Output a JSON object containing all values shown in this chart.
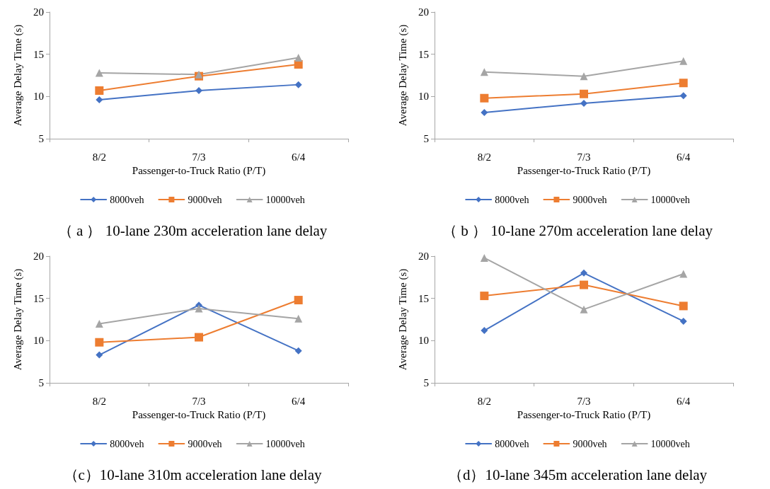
{
  "chart_data": [
    {
      "type": "line",
      "title": "（ a ） 10-lane 230m acceleration lane delay",
      "xlabel": "Passenger-to-Truck Ratio (P/T)",
      "ylabel": "Average Delay Time (s)",
      "categories": [
        "8/2",
        "7/3",
        "6/4"
      ],
      "ylim": [
        5,
        20
      ],
      "yticks": [
        5,
        10,
        15,
        20
      ],
      "grid": false,
      "legend": "bottom",
      "series": [
        {
          "name": "8000veh",
          "color": "#4472c4",
          "marker": "diamond",
          "values": [
            9.6,
            10.7,
            11.4
          ]
        },
        {
          "name": "9000veh",
          "color": "#ed7d31",
          "marker": "square",
          "values": [
            10.7,
            12.4,
            13.8
          ]
        },
        {
          "name": "10000veh",
          "color": "#a5a5a5",
          "marker": "triangle",
          "values": [
            12.8,
            12.6,
            14.6
          ]
        }
      ]
    },
    {
      "type": "line",
      "title": "（ b ） 10-lane 270m acceleration lane delay",
      "xlabel": "Passenger-to-Truck Ratio (P/T)",
      "ylabel": "Average Delay Time (s)",
      "categories": [
        "8/2",
        "7/3",
        "6/4"
      ],
      "ylim": [
        5,
        20
      ],
      "yticks": [
        5,
        10,
        15,
        20
      ],
      "grid": false,
      "legend": "bottom",
      "series": [
        {
          "name": "8000veh",
          "color": "#4472c4",
          "marker": "diamond",
          "values": [
            8.1,
            9.2,
            10.1
          ]
        },
        {
          "name": "9000veh",
          "color": "#ed7d31",
          "marker": "square",
          "values": [
            9.8,
            10.3,
            11.6
          ]
        },
        {
          "name": "10000veh",
          "color": "#a5a5a5",
          "marker": "triangle",
          "values": [
            12.9,
            12.4,
            14.2
          ]
        }
      ]
    },
    {
      "type": "line",
      "title": "（c）10-lane 310m acceleration lane delay",
      "xlabel": "Passenger-to-Truck Ratio (P/T)",
      "ylabel": "Average Delay Time (s)",
      "categories": [
        "8/2",
        "7/3",
        "6/4"
      ],
      "ylim": [
        5,
        20
      ],
      "yticks": [
        5,
        10,
        15,
        20
      ],
      "grid": false,
      "legend": "bottom",
      "series": [
        {
          "name": "8000veh",
          "color": "#4472c4",
          "marker": "diamond",
          "values": [
            8.3,
            14.2,
            8.8
          ]
        },
        {
          "name": "9000veh",
          "color": "#ed7d31",
          "marker": "square",
          "values": [
            9.8,
            10.4,
            14.8
          ]
        },
        {
          "name": "10000veh",
          "color": "#a5a5a5",
          "marker": "triangle",
          "values": [
            12.0,
            13.8,
            12.6
          ]
        }
      ]
    },
    {
      "type": "line",
      "title": "（d）10-lane 345m acceleration lane delay",
      "xlabel": "Passenger-to-Truck Ratio (P/T)",
      "ylabel": "Average Delay Time (s)",
      "categories": [
        "8/2",
        "7/3",
        "6/4"
      ],
      "ylim": [
        5,
        20
      ],
      "yticks": [
        5,
        10,
        15,
        20
      ],
      "grid": false,
      "legend": "bottom",
      "series": [
        {
          "name": "8000veh",
          "color": "#4472c4",
          "marker": "diamond",
          "values": [
            11.2,
            18.0,
            12.3
          ]
        },
        {
          "name": "9000veh",
          "color": "#ed7d31",
          "marker": "square",
          "values": [
            15.3,
            16.6,
            14.1
          ]
        },
        {
          "name": "10000veh",
          "color": "#a5a5a5",
          "marker": "triangle",
          "values": [
            19.8,
            13.7,
            17.9
          ]
        }
      ]
    }
  ]
}
